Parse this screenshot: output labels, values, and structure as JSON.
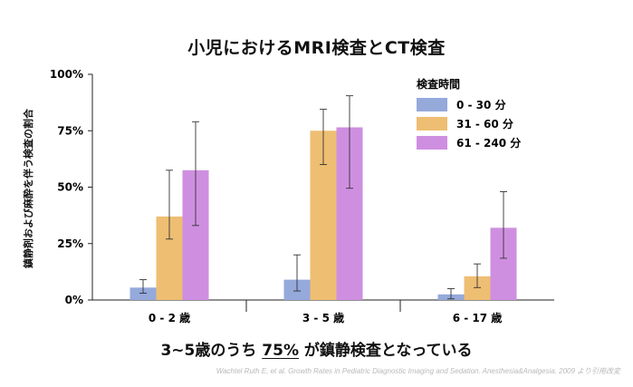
{
  "chart_data": {
    "type": "bar",
    "title": "小児におけるMRI検査とCT検査",
    "ylabel": "鎮静剤および麻酔を伴う検査の割合",
    "xlabel": "",
    "ylim": [
      0,
      100
    ],
    "yticks": [
      0,
      25,
      50,
      75,
      100
    ],
    "ytick_labels": [
      "0%",
      "25%",
      "50%",
      "75%",
      "100%"
    ],
    "categories": [
      "0 - 2 歳",
      "3 - 5 歳",
      "6 - 17 歳"
    ],
    "legend_title": "検査時間",
    "legend_position": "top-right",
    "series": [
      {
        "name": "0 - 30 分",
        "color": "#95a9db",
        "values": [
          5.5,
          9,
          2.5
        ],
        "err_low": [
          3,
          4,
          0.5
        ],
        "err_high": [
          9,
          20,
          5
        ]
      },
      {
        "name": "31 - 60 分",
        "color": "#eebe73",
        "values": [
          37,
          75,
          10.5
        ],
        "err_low": [
          27,
          60,
          5.5
        ],
        "err_high": [
          57.5,
          84.5,
          16
        ]
      },
      {
        "name": "61 - 240 分",
        "color": "#cf8fe1",
        "values": [
          57.5,
          76.5,
          32
        ],
        "err_low": [
          33,
          49.5,
          18.5
        ],
        "err_high": [
          79,
          90.5,
          48
        ]
      }
    ]
  },
  "conclusion": {
    "before": "3~5歳のうち ",
    "highlight": "75%",
    "after": " が鎮静検査となっている"
  },
  "citation": "Wachtel Ruth E, et al.  Growth Rates in Pediatric Diagnostic Imaging and Sedation. Anesthesia&Analgesia. 2009 より引用改変"
}
